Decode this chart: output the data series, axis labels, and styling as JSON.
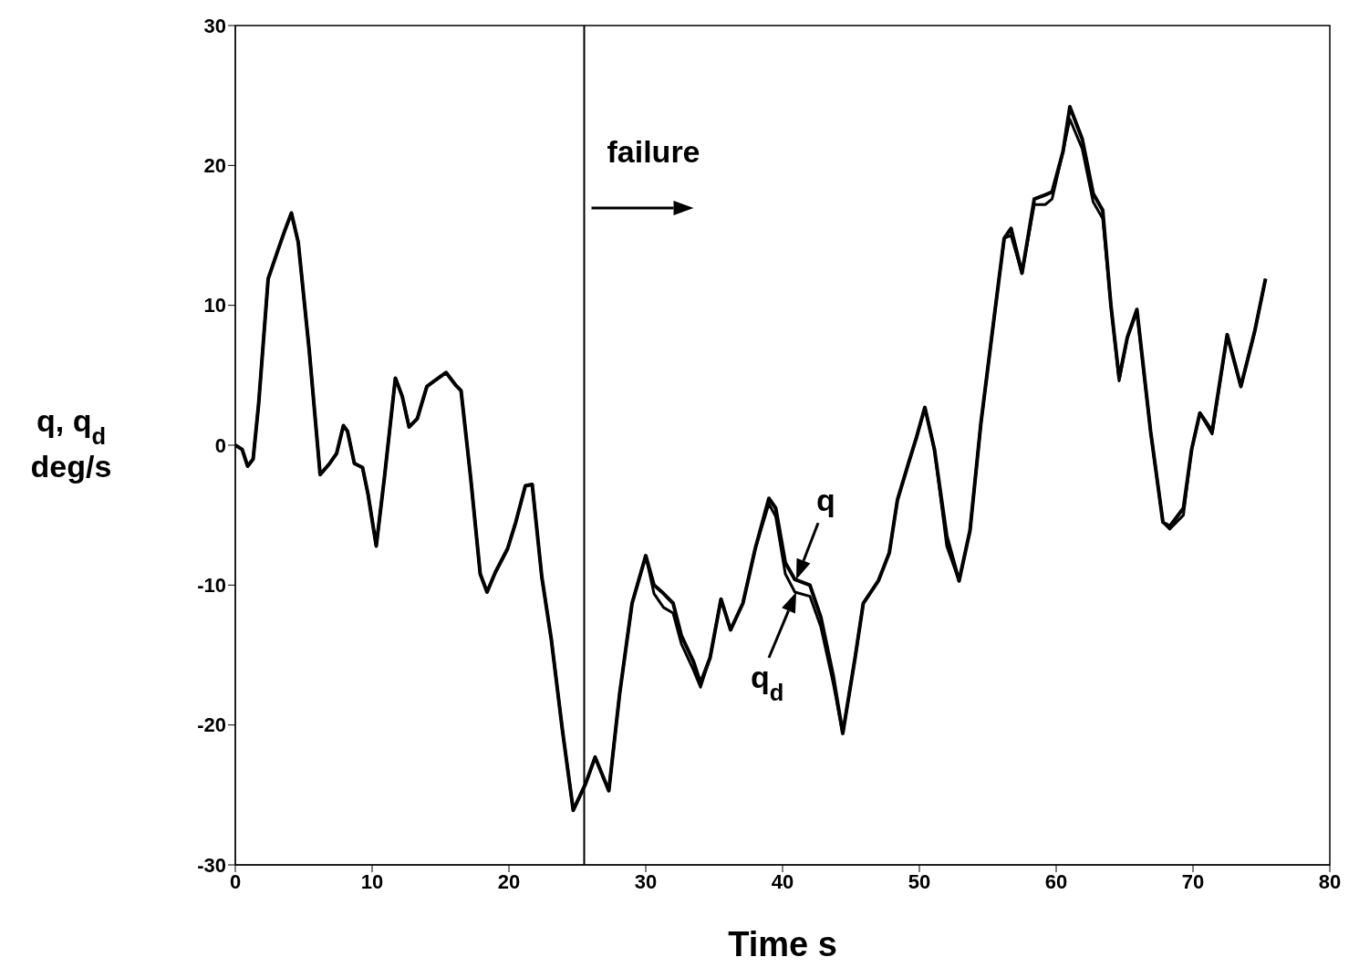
{
  "chart_data": {
    "type": "line",
    "xlabel": "Time s",
    "ylabel": "q, q$_{d}$\ndeg/s",
    "xlim": [
      0,
      80
    ],
    "ylim": [
      -30,
      30
    ],
    "xticks": [
      0,
      10,
      20,
      30,
      40,
      50,
      60,
      70,
      80
    ],
    "yticks": [
      -30,
      -20,
      -10,
      0,
      10,
      20,
      30
    ],
    "marker": "none",
    "line_style": "solid",
    "series": [
      {
        "color": "#000000",
        "x": [
          0,
          0.5,
          0.9,
          1.3,
          1.7,
          2.4,
          3.1,
          3.6,
          4.1,
          4.6,
          5.4,
          6.2,
          6.9,
          7.4,
          7.9,
          8.2,
          8.7,
          9.3,
          9.7,
          10.3,
          10.9,
          11.7,
          12.2,
          12.7,
          13.3,
          14,
          14.7,
          15.4,
          16.1,
          16.5,
          17.2,
          17.9,
          18.4,
          19,
          19.9,
          20.5,
          21.2,
          21.7,
          22.4,
          23.1,
          23.9,
          24.7,
          25.6,
          26.3,
          27.3,
          28.1,
          29,
          30,
          30.6,
          31.3,
          32,
          32.6,
          33.5,
          34,
          34.7,
          35.5,
          36.2,
          37.1,
          38,
          39,
          39.5,
          40.2,
          40.9,
          42,
          42.8,
          43.7,
          44.4,
          45.3,
          45.9,
          47,
          47.8,
          48.4,
          49.2,
          49.8,
          50.4,
          51.1,
          52,
          52.9,
          53.7,
          54.5,
          55.5,
          56.2,
          56.7,
          57.5,
          58.4,
          59.2,
          59.7,
          60.5,
          61,
          61.9,
          62.7,
          63.4,
          64,
          64.6,
          65.2,
          65.9,
          66.9,
          67.8,
          68.3,
          69.3,
          69.9,
          70.5,
          71.4,
          72.5,
          73.5,
          74.5,
          75.3
        ],
        "values": [
          0,
          -0.3,
          -1.5,
          -1,
          2.9,
          11.9,
          13.9,
          15.3,
          16.6,
          14.5,
          6.8,
          -2.1,
          -1.3,
          -0.6,
          1.4,
          1,
          -1.3,
          -1.6,
          -3.5,
          -7.2,
          -2.3,
          4.8,
          3.5,
          1.3,
          1.9,
          4.2,
          4.7,
          5.2,
          4.3,
          3.9,
          -2.3,
          -9.2,
          -10.5,
          -9.1,
          -7.4,
          -5.5,
          -2.9,
          -2.8,
          -9.4,
          -13.9,
          -20.3,
          -26.1,
          -24.2,
          -22.3,
          -24.7,
          -17.7,
          -11.3,
          -7.9,
          -10,
          -10.6,
          -11.3,
          -13.6,
          -15.5,
          -17,
          -15.2,
          -11,
          -13.2,
          -11.3,
          -7.4,
          -3.8,
          -4.5,
          -8.4,
          -9.6,
          -10,
          -12.3,
          -16.5,
          -20.6,
          -15.2,
          -11.3,
          -9.7,
          -7.7,
          -3.9,
          -1.3,
          0.6,
          2.7,
          -0.3,
          -6.5,
          -9.7,
          -6.1,
          1.6,
          9.4,
          14.8,
          15.5,
          12.3,
          17.6,
          17.9,
          18.1,
          21,
          24.2,
          21.9,
          18,
          16.8,
          10,
          4.8,
          7.7,
          9.7,
          1,
          -5.5,
          -5.8,
          -4.5,
          -0.3,
          2.3,
          1,
          7.9,
          4.2,
          8.1,
          11.9
        ]
      },
      {
        "color": "#000000",
        "x": [
          0,
          0.5,
          0.9,
          1.3,
          1.7,
          2.4,
          3.1,
          3.6,
          4.1,
          4.6,
          5.4,
          6.2,
          6.9,
          7.4,
          7.9,
          8.2,
          8.7,
          9.3,
          9.7,
          10.3,
          10.9,
          11.7,
          12.2,
          12.7,
          13.3,
          14,
          14.7,
          15.4,
          16.1,
          16.5,
          17.2,
          17.9,
          18.4,
          19,
          19.9,
          20.5,
          21.2,
          21.7,
          22.4,
          23.1,
          23.9,
          24.7,
          25.6,
          26.3,
          27.3,
          28.1,
          29,
          30,
          30.6,
          31.3,
          32,
          32.6,
          33.5,
          34,
          34.7,
          35.5,
          36.2,
          37.1,
          38,
          39,
          39.5,
          40.2,
          40.9,
          42,
          42.8,
          43.7,
          44.4,
          45.3,
          45.9,
          47,
          47.8,
          48.4,
          49.2,
          49.8,
          50.4,
          51.1,
          52,
          52.9,
          53.7,
          54.5,
          55.5,
          56.2,
          56.7,
          57.5,
          58.4,
          59.2,
          59.7,
          60.5,
          61,
          61.9,
          62.7,
          63.4,
          64,
          64.6,
          65.2,
          65.9,
          66.9,
          67.8,
          68.3,
          69.3,
          69.9,
          70.5,
          71.4,
          72.5,
          73.5,
          74.5,
          75.3
        ],
        "values": [
          0,
          -0.3,
          -1.5,
          -1,
          2.9,
          11.9,
          13.9,
          15.3,
          16.6,
          14.5,
          6.8,
          -2.1,
          -1.3,
          -0.6,
          1.4,
          1,
          -1.3,
          -1.6,
          -3.5,
          -7.2,
          -2.3,
          4.8,
          3.5,
          1.3,
          1.9,
          4.2,
          4.7,
          5.2,
          4.3,
          3.9,
          -2.3,
          -9.2,
          -10.5,
          -9.1,
          -7.4,
          -5.5,
          -2.9,
          -2.8,
          -9.4,
          -13.9,
          -20.3,
          -26.1,
          -24.2,
          -22.3,
          -24.7,
          -17.7,
          -11.3,
          -7.9,
          -10.6,
          -11.6,
          -12,
          -14.2,
          -16.1,
          -17.3,
          -15.2,
          -11,
          -13.2,
          -11.3,
          -7.4,
          -4.2,
          -5.1,
          -9.2,
          -10.5,
          -10.8,
          -13,
          -17,
          -20.6,
          -15.2,
          -11.3,
          -9.7,
          -7.7,
          -3.9,
          -1.3,
          0.6,
          2.7,
          -0.3,
          -7.2,
          -9.7,
          -6.1,
          1.6,
          9.4,
          14.8,
          15,
          12.3,
          17.2,
          17.2,
          17.6,
          21,
          23.3,
          21.2,
          17.4,
          16.2,
          10,
          4.6,
          7.7,
          9.5,
          1,
          -5.5,
          -6,
          -5,
          -0.3,
          2.3,
          0.8,
          7.9,
          4.2,
          8.1,
          11.9
        ]
      }
    ],
    "ref_lines": [
      {
        "axis": "x",
        "value": 25.5,
        "label": "failure",
        "color": "#000000"
      }
    ],
    "annotations": [
      {
        "text": "q",
        "x": 41,
        "y": -9.6
      },
      {
        "text": "q$_{d}$",
        "x": 41,
        "y": -10.5
      }
    ]
  }
}
